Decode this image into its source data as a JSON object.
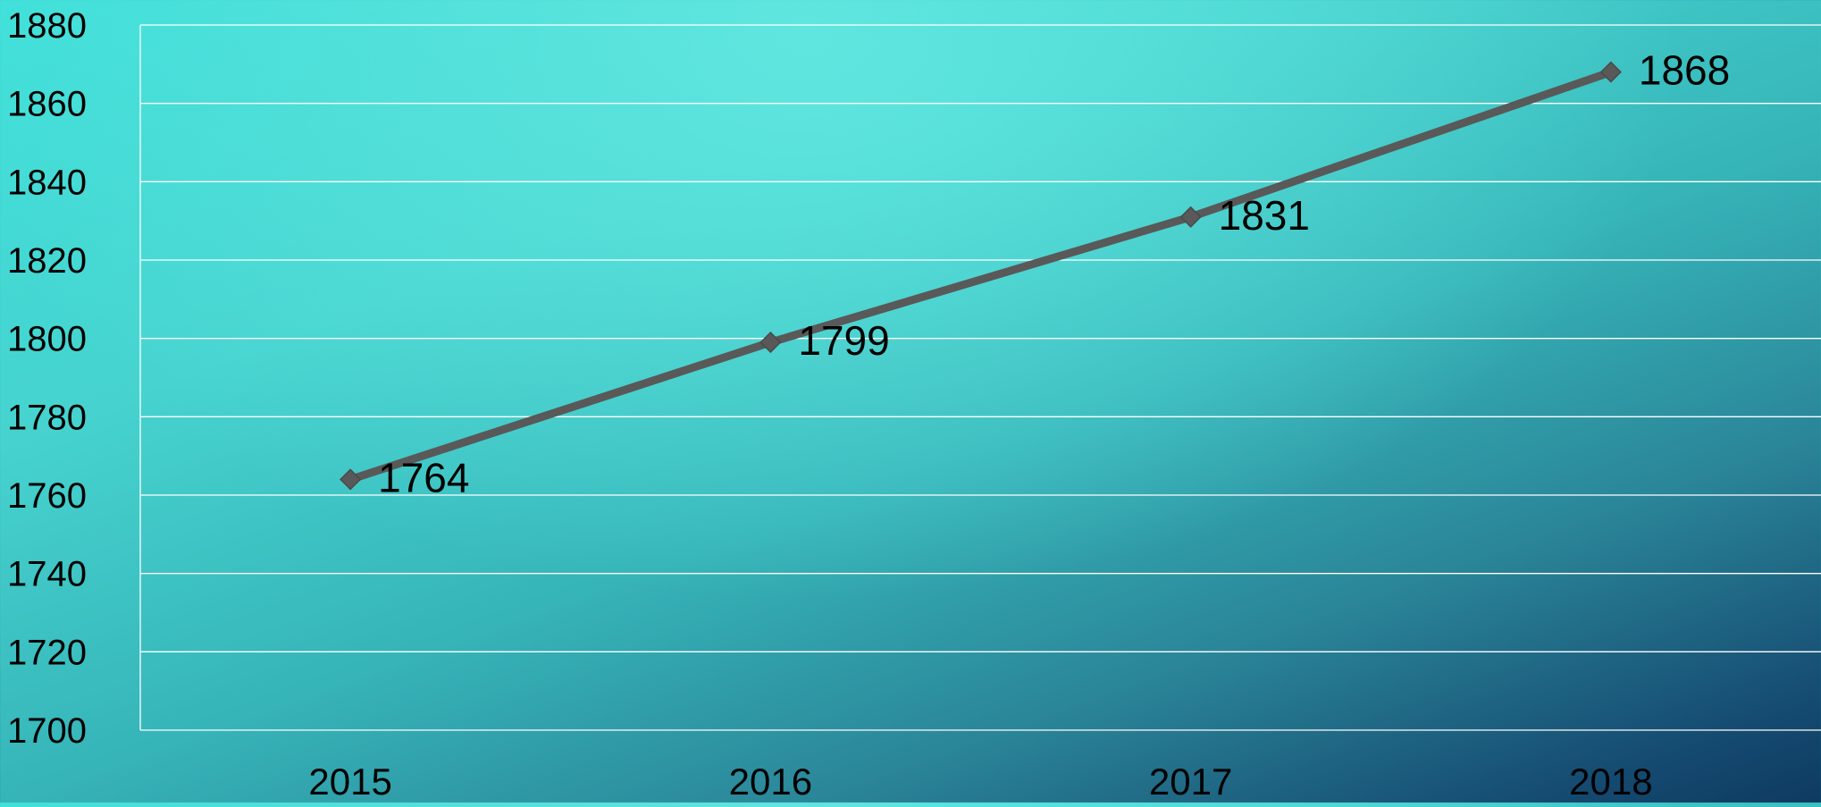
{
  "chart_data": {
    "type": "line",
    "title": "",
    "xlabel": "",
    "ylabel": "",
    "categories": [
      "2015",
      "2016",
      "2017",
      "2018"
    ],
    "series": [
      {
        "values": [
          1764,
          1799,
          1831,
          1868
        ],
        "color": "#595959"
      }
    ],
    "data_labels": [
      "1764",
      "1799",
      "1831",
      "1868"
    ],
    "ylim": [
      1700,
      1880
    ],
    "y_ticks": [
      1700,
      1720,
      1740,
      1760,
      1780,
      1800,
      1820,
      1840,
      1860,
      1880
    ],
    "y_tick_labels": [
      "1700",
      "1720",
      "1740",
      "1760",
      "1780",
      "1800",
      "1820",
      "1840",
      "1860",
      "1880"
    ],
    "grid": true,
    "gridline_color": "#ffffff",
    "marker": "diamond",
    "legend": "none"
  }
}
